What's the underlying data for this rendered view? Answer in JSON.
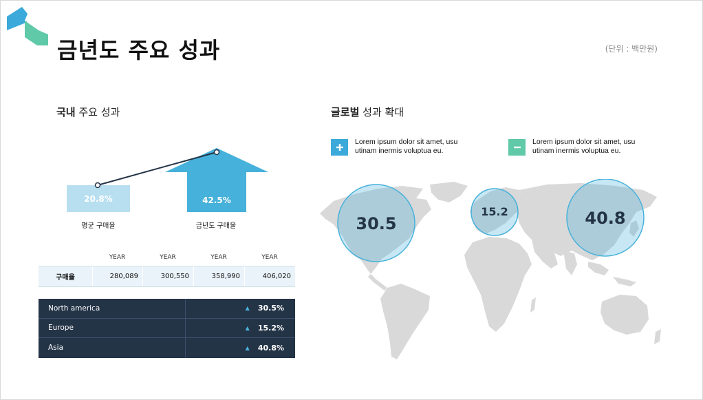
{
  "page": {
    "title": "금년도 주요 성과",
    "unit": "(단위 : 백만원)"
  },
  "domestic": {
    "title_bold": "국내",
    "title_rest": " 주요 성과",
    "avg_value": "20.8%",
    "avg_caption": "평균 구매율",
    "current_value": "42.5%",
    "current_caption": "금년도 구매율",
    "table": {
      "headers": [
        "",
        "YEAR",
        "YEAR",
        "YEAR",
        "YEAR"
      ],
      "row_label": "구매율",
      "values": [
        "280,089",
        "300,550",
        "358,990",
        "406,020"
      ]
    },
    "regions": [
      {
        "name": "North america",
        "value": "30.5%"
      },
      {
        "name": "Europe",
        "value": "15.2%"
      },
      {
        "name": "Asia",
        "value": "40.8%"
      }
    ]
  },
  "global": {
    "title_bold": "글로벌",
    "title_rest": " 성과 확대",
    "legend": [
      {
        "icon": "plus-icon",
        "color": "#3ba9d9",
        "text": "Lorem ipsum dolor sit amet, usu utinam inermis voluptua eu."
      },
      {
        "icon": "minus-icon",
        "color": "#5fc9a8",
        "text": "Lorem ipsum dolor sit amet, usu utinam inermis voluptua eu."
      }
    ],
    "bubbles": [
      {
        "region": "North america",
        "value": "30.5"
      },
      {
        "region": "Europe",
        "value": "15.2"
      },
      {
        "region": "Asia",
        "value": "40.8"
      }
    ]
  },
  "colors": {
    "accent_blue": "#46b1da",
    "light_blue": "#b7dff0",
    "navy": "#243447",
    "teal": "#5fc9a8",
    "map_gray": "#d9d9d9"
  }
}
